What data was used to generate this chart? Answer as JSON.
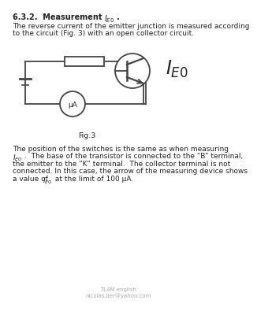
{
  "title_line1": "6.3.2.  Measurement  ",
  "title_sub": "IE0",
  "title_end": ".",
  "para1_line1": "The reverse current of the emitter junction is measured according",
  "para1_line2": "to the circuit (Fig. 3) with an open collector circuit.",
  "fig_label": "Fig.3",
  "para2_line1": "The position of the switches is the same as when measuring",
  "para2_line2": "IE0.  The base of the transistor is connected to the “B” terminal,",
  "para2_line3": "the emitter to the “K” terminal.  The collector terminal is not",
  "para2_line4": "connected. In this case, the arrow of the measuring device shows",
  "para2_line5": "a value of IE0 at the limit of 100 μA.",
  "footer_line1": "TL4M english",
  "footer_line2": "nicolas.lier@yahoo.com",
  "bg_color": "#ffffff",
  "text_color": "#222222",
  "circuit_color": "#444444",
  "font_size_title": 7,
  "font_size_body": 6.5,
  "font_size_caption": 6.8,
  "font_size_footer": 5
}
